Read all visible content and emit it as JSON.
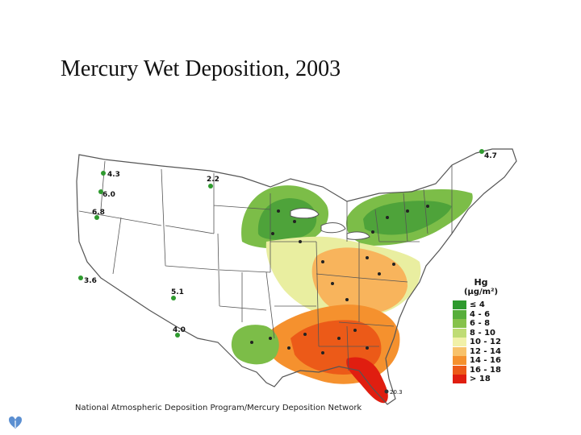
{
  "slide": {
    "title": "Mercury Wet Deposition, 2003"
  },
  "map": {
    "credit": "National Atmospheric Deposition Program/Mercury Deposition Network",
    "legend": {
      "title": "Hg",
      "unit": "(µg/m²)",
      "classes": [
        {
          "label": "≤ 4",
          "color": "#2e9a2e"
        },
        {
          "label": "4 - 6",
          "color": "#57ae3a"
        },
        {
          "label": "6 - 8",
          "color": "#86c24a"
        },
        {
          "label": "8 - 10",
          "color": "#bfdc74"
        },
        {
          "label": "10 - 12",
          "color": "#f1f1a8"
        },
        {
          "label": "12 - 14",
          "color": "#f8c26a"
        },
        {
          "label": "14 - 16",
          "color": "#f5912e"
        },
        {
          "label": "16 - 18",
          "color": "#ec5a18"
        },
        {
          "label": "> 18",
          "color": "#e01e10"
        }
      ]
    },
    "sites": [
      {
        "label": "4.3"
      },
      {
        "label": "6.0"
      },
      {
        "label": "6.8"
      },
      {
        "label": "3.6"
      },
      {
        "label": "2.2"
      },
      {
        "label": "5.1"
      },
      {
        "label": "4.0"
      },
      {
        "label": "4.7"
      },
      {
        "label": "20.3"
      }
    ]
  }
}
